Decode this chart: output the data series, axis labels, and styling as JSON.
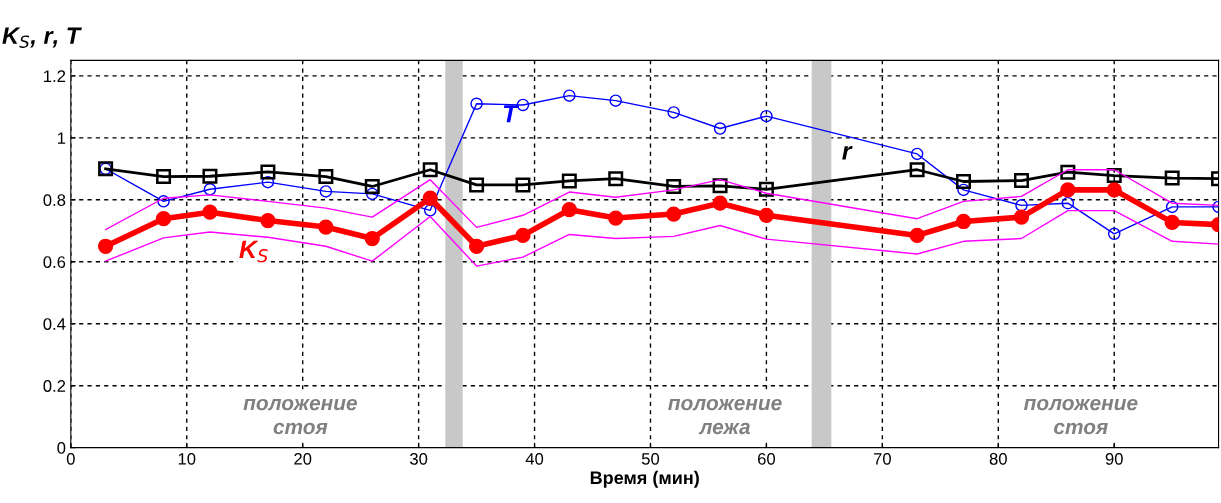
{
  "chart_data": {
    "type": "line",
    "ylabel": "K$_{S}$, r, T",
    "xlabel": "Время (мин)",
    "xlim": [
      0,
      99
    ],
    "xticks": [
      0,
      10,
      20,
      30,
      40,
      50,
      60,
      70,
      80,
      90
    ],
    "ylim": [
      0,
      1.25
    ],
    "yticks": [
      0,
      0.2,
      0.4,
      0.6,
      0.8,
      1,
      1.2
    ],
    "grid": true,
    "legend": false,
    "x": [
      3,
      8,
      12,
      17,
      22,
      26,
      31,
      35,
      39,
      43,
      47,
      52,
      56,
      60,
      73,
      77,
      82,
      86,
      90,
      95,
      99
    ],
    "series": [
      {
        "name": "T",
        "color": "#0000ff",
        "marker": "circle",
        "values": [
          0.9,
          0.795,
          0.834,
          0.857,
          0.827,
          0.819,
          0.766,
          1.11,
          1.106,
          1.136,
          1.12,
          1.082,
          1.03,
          1.07,
          0.948,
          0.832,
          0.782,
          0.789,
          0.69,
          0.777,
          0.777
        ]
      },
      {
        "name": "r",
        "color": "#000000",
        "marker": "square",
        "values": [
          0.9,
          0.875,
          0.876,
          0.89,
          0.875,
          0.843,
          0.897,
          0.848,
          0.848,
          0.861,
          0.868,
          0.843,
          0.845,
          0.834,
          0.897,
          0.859,
          0.862,
          0.889,
          0.878,
          0.87,
          0.868
        ]
      },
      {
        "color": "#ff00ff",
        "marker": "none",
        "values": [
          0.704,
          0.805,
          0.816,
          0.795,
          0.773,
          0.744,
          0.865,
          0.711,
          0.75,
          0.825,
          0.808,
          0.832,
          0.865,
          0.821,
          0.739,
          0.795,
          0.811,
          0.897,
          0.897,
          0.789,
          0.782
        ]
      },
      {
        "color": "#ff00ff",
        "marker": "none",
        "values": [
          0.602,
          0.677,
          0.696,
          0.679,
          0.65,
          0.602,
          0.746,
          0.586,
          0.615,
          0.688,
          0.675,
          0.682,
          0.717,
          0.673,
          0.625,
          0.666,
          0.675,
          0.765,
          0.765,
          0.666,
          0.657
        ]
      },
      {
        "name": "K$_{S}$",
        "color": "#ff0000",
        "marker": "circle",
        "values": [
          0.65,
          0.739,
          0.76,
          0.733,
          0.712,
          0.675,
          0.805,
          0.65,
          0.685,
          0.768,
          0.741,
          0.754,
          0.789,
          0.75,
          0.685,
          0.73,
          0.744,
          0.832,
          0.832,
          0.727,
          0.72
        ]
      }
    ],
    "bands": [
      {
        "axis": "x",
        "from": 32.3,
        "to": 33.8,
        "color": "#c8c8c8"
      },
      {
        "axis": "x",
        "from": 63.9,
        "to": 65.6,
        "color": "#c8c8c8"
      }
    ],
    "annotations": [
      "положение\nстоя",
      "положение\nлежа",
      "положение\nстоя"
    ]
  }
}
